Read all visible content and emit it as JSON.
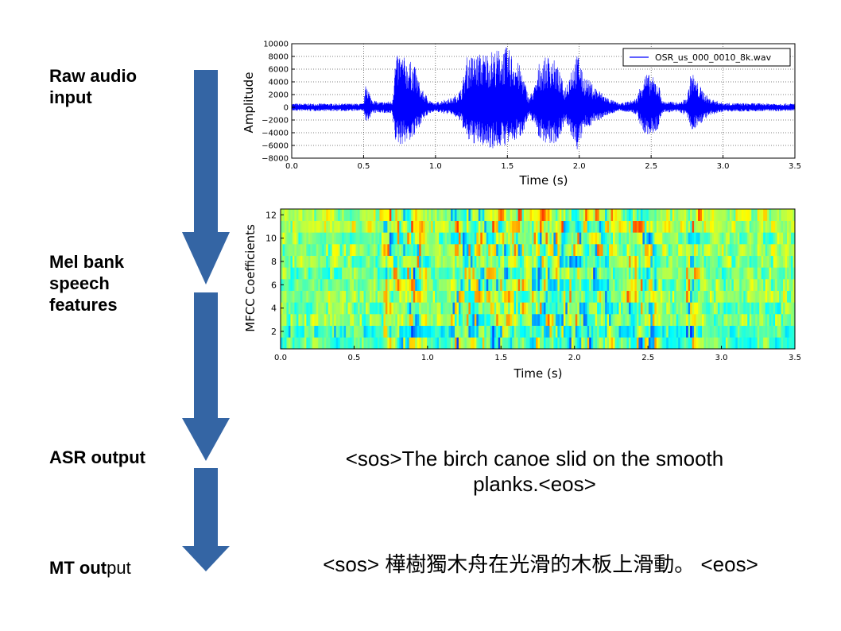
{
  "stages": {
    "raw_audio": "Raw audio\ninput",
    "mel": "Mel bank\nspeech\nfeatures",
    "asr": "ASR output",
    "mt_bold": "MT out",
    "mt_normal": "put"
  },
  "outputs": {
    "asr_text": "<sos>The birch canoe slid on the smooth planks.<eos>",
    "mt_text": "<sos> 樺樹獨木舟在光滑的木板上滑動。 <eos>"
  },
  "colors": {
    "arrow": "#3465a4",
    "waveform": "#0000ff"
  },
  "chart_data": [
    {
      "type": "line",
      "title": "",
      "xlabel": "Time (s)",
      "ylabel": "Amplitude",
      "xlim": [
        0.0,
        3.5
      ],
      "ylim": [
        -8000,
        10000
      ],
      "xticks": [
        "0.0",
        "0.5",
        "1.0",
        "1.5",
        "2.0",
        "2.5",
        "3.0",
        "3.5"
      ],
      "yticks": [
        "−8000",
        "−6000",
        "−4000",
        "−2000",
        "0",
        "2000",
        "4000",
        "6000",
        "8000",
        "10000"
      ],
      "legend": "OSR_us_000_0010_8k.wav",
      "legend_position": "top-right",
      "grid": true,
      "series": [
        {
          "name": "OSR_us_000_0010_8k.wav",
          "envelope_t": [
            0.0,
            0.5,
            0.52,
            0.55,
            0.6,
            0.7,
            0.72,
            0.75,
            0.8,
            0.85,
            0.9,
            0.95,
            0.99,
            1.05,
            1.12,
            1.18,
            1.22,
            1.3,
            1.4,
            1.5,
            1.55,
            1.6,
            1.65,
            1.7,
            1.72,
            1.8,
            1.85,
            1.9,
            1.95,
            2.0,
            2.02,
            2.1,
            2.2,
            2.28,
            2.35,
            2.4,
            2.45,
            2.5,
            2.55,
            2.58,
            2.7,
            2.75,
            2.78,
            2.82,
            2.9,
            3.0,
            3.5
          ],
          "envelope_max": [
            600,
            600,
            4500,
            1500,
            800,
            1000,
            7500,
            8800,
            7500,
            7000,
            3000,
            1500,
            600,
            1200,
            1500,
            3000,
            8000,
            8500,
            9000,
            9500,
            8000,
            6000,
            1500,
            4000,
            7000,
            8500,
            6500,
            3000,
            7000,
            8800,
            5500,
            3500,
            1500,
            600,
            1000,
            1500,
            5500,
            5000,
            4000,
            1000,
            800,
            1500,
            6000,
            4000,
            1500,
            700,
            600
          ],
          "envelope_min": [
            -600,
            -600,
            -3000,
            -1200,
            -800,
            -1200,
            -5500,
            -6000,
            -5500,
            -5000,
            -2500,
            -1200,
            -600,
            -1000,
            -1200,
            -2500,
            -5500,
            -6000,
            -6500,
            -6000,
            -5500,
            -4500,
            -1500,
            -3000,
            -5000,
            -6000,
            -5500,
            -2500,
            -5000,
            -7500,
            -4000,
            -2500,
            -1200,
            -600,
            -800,
            -1200,
            -4500,
            -4500,
            -3500,
            -800,
            -800,
            -1500,
            -4000,
            -3000,
            -1500,
            -700,
            -600
          ]
        }
      ]
    },
    {
      "type": "heatmap",
      "title": "",
      "xlabel": "Time (s)",
      "ylabel": "MFCC Coefficients",
      "xlim": [
        0.0,
        3.5
      ],
      "ylim": [
        1,
        13
      ],
      "xticks": [
        "0.0",
        "0.5",
        "1.0",
        "1.5",
        "2.0",
        "2.5",
        "3.0",
        "3.5"
      ],
      "yticks": [
        "2",
        "4",
        "6",
        "8",
        "10",
        "12"
      ],
      "rows": 12,
      "colormap": "jet"
    }
  ]
}
